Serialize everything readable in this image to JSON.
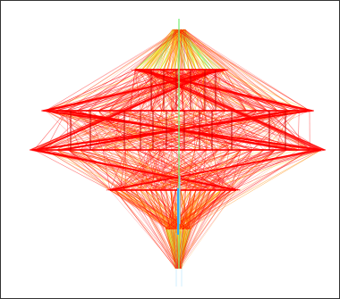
{
  "figure": {
    "type": "layered-graph-drawing",
    "edge_color_scale": [
      "#8fd8ff",
      "#2ca8ff",
      "#7cf07a",
      "#e6f23a",
      "#ffd700",
      "#ff8a00",
      "#ff0000"
    ],
    "edge_count_per_layer_pair": 140,
    "layers": 7,
    "frame_border_color": "#333333"
  }
}
